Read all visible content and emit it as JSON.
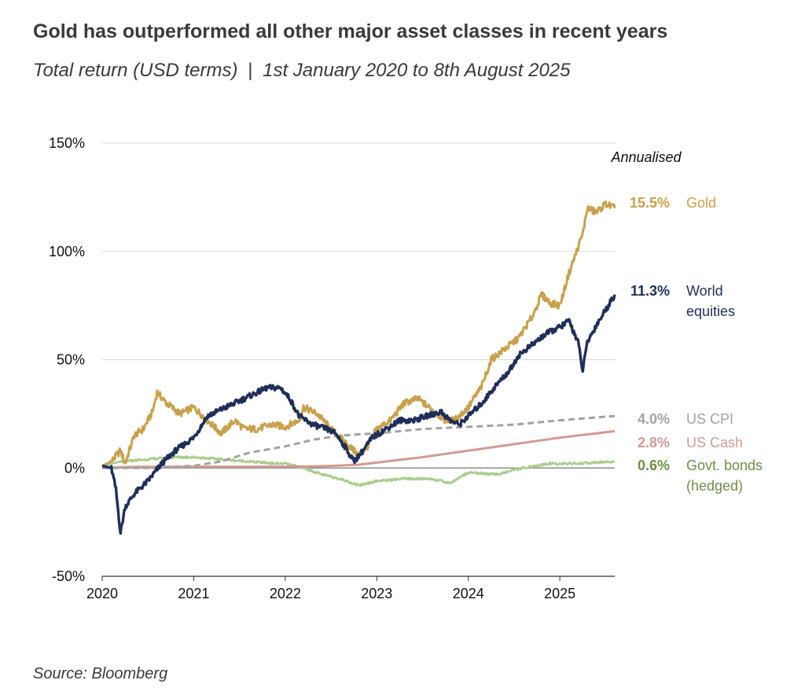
{
  "title": "Gold has outperformed all other major asset classes in recent years",
  "subtitle": {
    "left": "Total return (USD terms)",
    "separator": "|",
    "right": "1st January 2020 to 8th August 2025"
  },
  "source": "Source: Bloomberg",
  "chart_data": {
    "type": "line",
    "title": "Gold has outperformed all other major asset classes in recent years",
    "subtitle": "Total return (USD terms) | 1st January 2020 to 8th August 2025",
    "xlabel": "",
    "ylabel": "",
    "xlim": [
      2020.0,
      2025.6
    ],
    "ylim": [
      -50,
      150
    ],
    "yticks": [
      -50,
      0,
      50,
      100,
      150
    ],
    "ytick_labels": [
      "-50%",
      "0%",
      "50%",
      "100%",
      "150%"
    ],
    "xticks": [
      2020,
      2021,
      2022,
      2023,
      2024,
      2025
    ],
    "xtick_labels": [
      "2020",
      "2021",
      "2022",
      "2023",
      "2024",
      "2025"
    ],
    "grid": "horizontal",
    "annotation": "Annualised",
    "series": [
      {
        "name": "Gold",
        "label_lines": [
          "Gold"
        ],
        "annualised": "15.5%",
        "color": "#C9A04C",
        "dash": "",
        "x": [
          2020.0,
          2020.1,
          2020.2,
          2020.25,
          2020.35,
          2020.45,
          2020.55,
          2020.6,
          2020.7,
          2020.85,
          2021.0,
          2021.15,
          2021.3,
          2021.45,
          2021.55,
          2021.7,
          2021.85,
          2022.0,
          2022.15,
          2022.2,
          2022.35,
          2022.5,
          2022.6,
          2022.7,
          2022.8,
          2022.9,
          2023.0,
          2023.15,
          2023.3,
          2023.45,
          2023.6,
          2023.75,
          2023.85,
          2024.0,
          2024.15,
          2024.25,
          2024.4,
          2024.55,
          2024.7,
          2024.8,
          2024.9,
          2025.0,
          2025.1,
          2025.2,
          2025.25,
          2025.3,
          2025.4,
          2025.5,
          2025.6
        ],
        "y": [
          1,
          3,
          8,
          2,
          15,
          18,
          26,
          35,
          30,
          25,
          28,
          22,
          16,
          22,
          18,
          18,
          20,
          19,
          22,
          28,
          25,
          18,
          14,
          10,
          6,
          10,
          18,
          22,
          30,
          32,
          27,
          22,
          22,
          28,
          38,
          50,
          55,
          60,
          70,
          80,
          76,
          75,
          90,
          102,
          108,
          120,
          118,
          122,
          120
        ]
      },
      {
        "name": "World equities",
        "label_lines": [
          "World",
          "equities"
        ],
        "annualised": "11.3%",
        "color": "#1F2F5A",
        "dash": "",
        "x": [
          2020.0,
          2020.1,
          2020.15,
          2020.2,
          2020.25,
          2020.35,
          2020.5,
          2020.65,
          2020.8,
          2021.0,
          2021.15,
          2021.3,
          2021.5,
          2021.65,
          2021.8,
          2021.95,
          2022.05,
          2022.15,
          2022.3,
          2022.45,
          2022.55,
          2022.65,
          2022.75,
          2022.85,
          2022.95,
          2023.1,
          2023.25,
          2023.4,
          2023.55,
          2023.7,
          2023.8,
          2023.9,
          2024.0,
          2024.15,
          2024.3,
          2024.45,
          2024.55,
          2024.7,
          2024.85,
          2025.0,
          2025.1,
          2025.2,
          2025.25,
          2025.3,
          2025.4,
          2025.5,
          2025.6
        ],
        "y": [
          1,
          0,
          -10,
          -30,
          -18,
          -12,
          -6,
          2,
          8,
          14,
          24,
          27,
          31,
          34,
          37,
          37,
          32,
          24,
          20,
          18,
          16,
          10,
          3,
          8,
          14,
          18,
          22,
          22,
          24,
          26,
          22,
          20,
          24,
          30,
          38,
          45,
          52,
          57,
          62,
          65,
          68,
          58,
          45,
          58,
          66,
          73,
          80
        ]
      },
      {
        "name": "US CPI",
        "label_lines": [
          "US CPI"
        ],
        "annualised": "4.0%",
        "color": "#A3A3A3",
        "dash": "8,5",
        "x": [
          2020.0,
          2020.5,
          2021.0,
          2021.3,
          2021.6,
          2022.0,
          2022.3,
          2022.6,
          2023.0,
          2023.5,
          2024.0,
          2024.5,
          2025.0,
          2025.6
        ],
        "y": [
          0,
          0,
          1,
          3,
          7,
          10,
          13,
          15,
          16,
          18,
          19,
          20,
          22,
          24
        ]
      },
      {
        "name": "US Cash",
        "label_lines": [
          "US Cash"
        ],
        "annualised": "2.8%",
        "color": "#D39A93",
        "dash": "",
        "x": [
          2020.0,
          2020.3,
          2021.0,
          2022.0,
          2022.4,
          2022.8,
          2023.0,
          2023.5,
          2024.0,
          2024.5,
          2025.0,
          2025.6
        ],
        "y": [
          0,
          0.5,
          0.6,
          0.6,
          0.8,
          1.5,
          2.5,
          5,
          8,
          11,
          14,
          17
        ]
      },
      {
        "name": "Govt. bonds (hedged)",
        "label_lines": [
          "Govt. bonds",
          "(hedged)"
        ],
        "annualised": "0.6%",
        "color": "#A9CC8C",
        "dash": "",
        "x": [
          2020.0,
          2020.2,
          2020.5,
          2020.8,
          2021.0,
          2021.3,
          2021.6,
          2021.9,
          2022.0,
          2022.2,
          2022.4,
          2022.6,
          2022.8,
          2023.0,
          2023.3,
          2023.6,
          2023.8,
          2024.0,
          2024.3,
          2024.6,
          2024.9,
          2025.2,
          2025.6
        ],
        "y": [
          1,
          3,
          4,
          5,
          5,
          4,
          3,
          2,
          2,
          0,
          -3,
          -5,
          -8,
          -6,
          -5,
          -5,
          -7,
          -2,
          -3,
          0,
          2,
          2,
          3
        ]
      }
    ]
  },
  "series_label_colors": {
    "Gold": "#C9A04C",
    "World equities": "#1F2F5A",
    "US CPI": "#A3A3A3",
    "US Cash": "#D39A93",
    "Govt. bonds (hedged)": "#6E8F45"
  }
}
